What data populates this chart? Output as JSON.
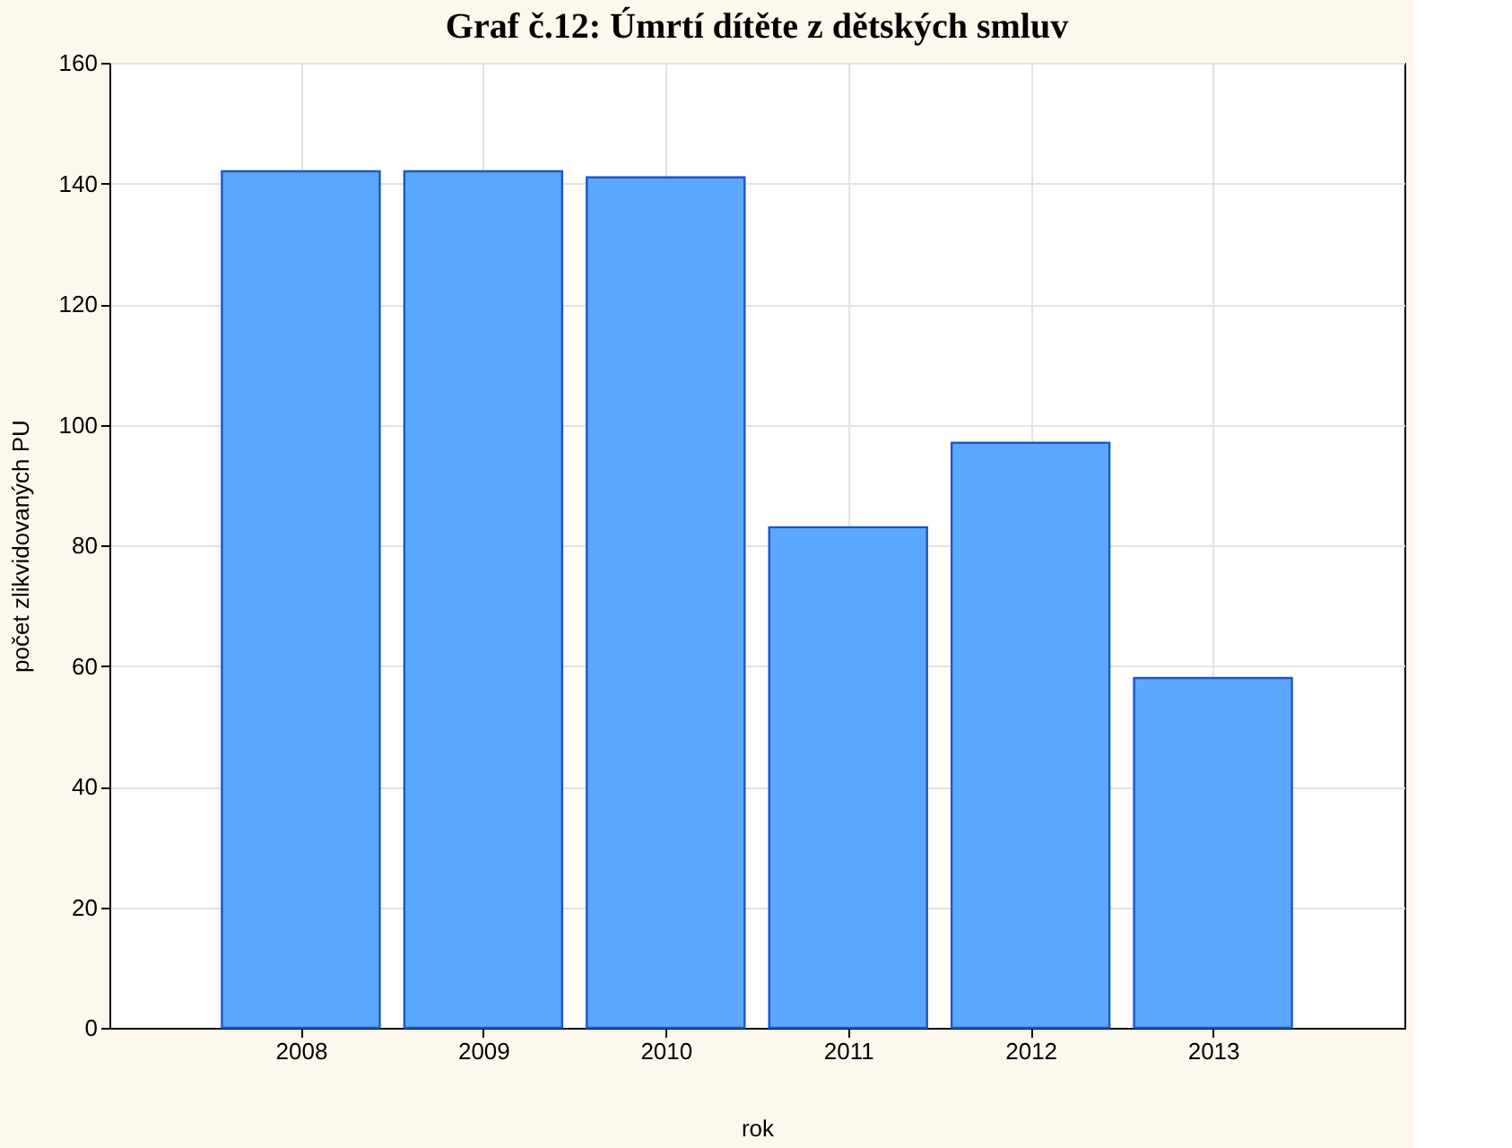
{
  "chart_data": {
    "type": "bar",
    "title": "Graf č.12: Úmrtí dítěte z dětských smluv",
    "xlabel": "rok",
    "ylabel": "počet zlikvidovaných PU",
    "categories": [
      "2008",
      "2009",
      "2010",
      "2011",
      "2012",
      "2013"
    ],
    "values": [
      142,
      142,
      141,
      83,
      97,
      58
    ],
    "color": "#5aa8ff",
    "ylim": [
      0,
      160
    ],
    "yticks": [
      0,
      20,
      40,
      60,
      80,
      100,
      120,
      140,
      160
    ],
    "grid": true
  }
}
